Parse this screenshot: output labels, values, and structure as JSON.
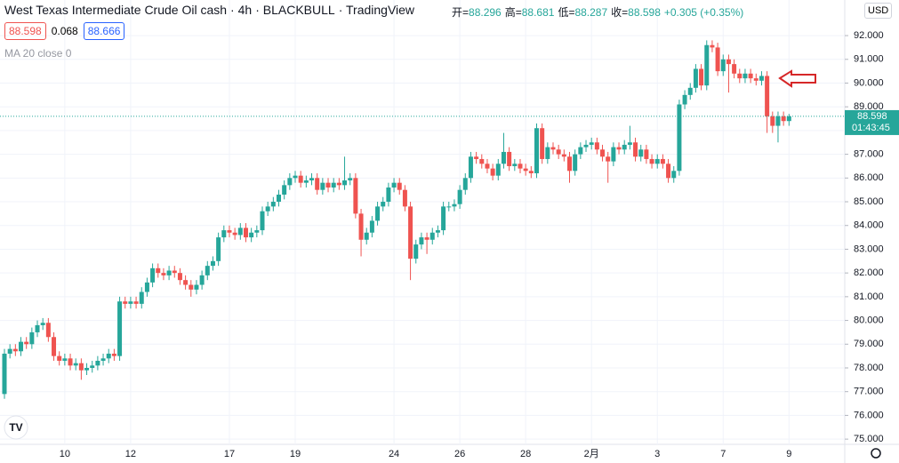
{
  "header": {
    "title": "West Texas Intermediate Crude Oil cash",
    "interval": "4h",
    "broker": "BLACKBULL",
    "source": "TradingView",
    "ohlc": [
      {
        "label": "开=",
        "value": 88.296
      },
      {
        "label": "高=",
        "value": 88.681
      },
      {
        "label": "低=",
        "value": 88.287
      },
      {
        "label": "收=",
        "value": 88.598
      }
    ],
    "change": "+0.305 (+0.35%)",
    "bid": 88.598,
    "spread": 0.068,
    "ask": 88.666,
    "indicator": "MA 20 close 0",
    "currency": "USD"
  },
  "chart_data": {
    "type": "candlestick",
    "categories": [
      null,
      null,
      null,
      null,
      null,
      null,
      null,
      null,
      null,
      null,
      null,
      "10",
      null,
      null,
      null,
      null,
      null,
      null,
      null,
      null,
      null,
      null,
      null,
      "12",
      null,
      null,
      null,
      null,
      null,
      null,
      null,
      null,
      null,
      null,
      null,
      null,
      null,
      null,
      null,
      null,
      null,
      "17",
      null,
      null,
      null,
      null,
      null,
      null,
      null,
      null,
      null,
      null,
      null,
      "19",
      null,
      null,
      null,
      null,
      null,
      null,
      null,
      null,
      null,
      null,
      null,
      null,
      null,
      null,
      null,
      null,
      null,
      "24",
      null,
      null,
      null,
      null,
      null,
      null,
      null,
      null,
      null,
      null,
      null,
      "26",
      null,
      null,
      null,
      null,
      null,
      null,
      null,
      null,
      null,
      null,
      null,
      "28",
      null,
      null,
      null,
      null,
      null,
      null,
      null,
      null,
      null,
      null,
      null,
      "2月",
      null,
      null,
      null,
      null,
      null,
      null,
      null,
      null,
      null,
      null,
      null,
      "3",
      null,
      null,
      null,
      null,
      null,
      null,
      null,
      null,
      null,
      null,
      null,
      "7",
      null,
      null,
      null,
      null,
      null,
      null,
      null,
      null,
      null,
      null,
      null,
      "9"
    ],
    "open": [
      76.9,
      78.6,
      78.8,
      78.7,
      79.1,
      79.0,
      79.5,
      79.8,
      79.9,
      79.3,
      78.5,
      78.3,
      78.4,
      78.1,
      78.2,
      77.9,
      78.0,
      78.1,
      78.3,
      78.4,
      78.6,
      78.5,
      80.8,
      80.7,
      80.8,
      80.7,
      81.2,
      81.6,
      82.2,
      82.0,
      81.9,
      82.1,
      82.0,
      81.7,
      81.5,
      81.3,
      81.5,
      81.9,
      82.3,
      82.5,
      83.5,
      83.8,
      83.7,
      83.6,
      83.9,
      83.5,
      83.7,
      83.8,
      84.6,
      84.8,
      85.0,
      85.3,
      85.7,
      86.0,
      86.1,
      85.8,
      85.9,
      86.0,
      85.5,
      85.8,
      85.6,
      85.8,
      85.7,
      85.9,
      86.0,
      84.5,
      83.4,
      83.7,
      84.2,
      84.8,
      85.0,
      85.6,
      85.8,
      85.5,
      84.8,
      82.6,
      83.2,
      83.5,
      83.4,
      83.7,
      83.8,
      84.8,
      84.8,
      84.9,
      85.5,
      86.0,
      86.9,
      86.8,
      86.6,
      86.4,
      86.1,
      86.6,
      87.1,
      86.5,
      86.6,
      86.4,
      86.3,
      86.2,
      88.1,
      86.8,
      87.3,
      87.2,
      87.0,
      86.9,
      86.3,
      87.0,
      87.3,
      87.4,
      87.5,
      87.2,
      86.9,
      86.7,
      87.3,
      87.2,
      87.4,
      87.5,
      86.9,
      87.2,
      86.8,
      86.6,
      86.8,
      86.6,
      86.0,
      86.3,
      89.1,
      89.5,
      89.8,
      90.6,
      89.9,
      91.6,
      91.5,
      90.5,
      91.0,
      90.8,
      90.4,
      90.2,
      90.4,
      90.2,
      90.1,
      90.3,
      88.6,
      88.2,
      88.6,
      88.4
    ],
    "high": [
      78.8,
      79.0,
      79.0,
      79.3,
      79.3,
      79.7,
      80.0,
      80.1,
      80.1,
      79.5,
      78.7,
      78.6,
      78.6,
      78.4,
      78.4,
      78.2,
      78.3,
      78.5,
      78.6,
      78.8,
      78.8,
      81.0,
      81.0,
      81.0,
      81.0,
      81.4,
      81.8,
      82.4,
      82.4,
      82.2,
      82.3,
      82.3,
      82.2,
      81.9,
      81.7,
      81.7,
      82.1,
      82.5,
      82.7,
      83.7,
      84.0,
      84.0,
      83.9,
      84.1,
      84.1,
      83.9,
      84.0,
      84.8,
      85.0,
      85.2,
      85.5,
      85.9,
      86.2,
      86.3,
      86.3,
      86.1,
      86.2,
      86.2,
      86.0,
      86.0,
      86.0,
      86.0,
      86.9,
      86.2,
      86.2,
      84.7,
      83.9,
      84.4,
      85.0,
      85.2,
      85.8,
      86.0,
      86.0,
      85.7,
      85.0,
      83.4,
      83.7,
      83.7,
      83.9,
      84.0,
      85.0,
      85.0,
      85.1,
      85.7,
      86.2,
      87.1,
      87.1,
      87.0,
      86.8,
      86.6,
      86.8,
      87.9,
      87.3,
      86.8,
      86.8,
      86.6,
      86.5,
      88.3,
      88.3,
      87.5,
      87.5,
      87.4,
      87.2,
      87.1,
      87.2,
      87.5,
      87.6,
      87.7,
      87.7,
      87.4,
      87.1,
      87.5,
      87.5,
      87.6,
      88.2,
      87.7,
      87.4,
      87.4,
      87.0,
      87.0,
      87.0,
      86.8,
      86.5,
      89.3,
      89.7,
      90.0,
      90.8,
      90.8,
      91.8,
      91.8,
      91.7,
      91.2,
      91.2,
      91.0,
      90.6,
      90.6,
      90.6,
      90.4,
      90.5,
      90.5,
      88.8,
      88.8,
      88.8,
      88.7
    ],
    "low": [
      76.7,
      78.4,
      78.5,
      78.5,
      78.8,
      78.8,
      79.3,
      79.6,
      79.1,
      78.3,
      78.1,
      78.1,
      77.9,
      77.9,
      77.5,
      77.7,
      77.8,
      77.9,
      78.1,
      78.2,
      78.3,
      78.3,
      80.5,
      80.5,
      80.5,
      80.5,
      81.0,
      81.4,
      81.8,
      81.7,
      81.7,
      81.8,
      81.5,
      81.3,
      81.0,
      81.1,
      81.3,
      81.7,
      82.1,
      82.3,
      83.3,
      83.5,
      83.4,
      83.4,
      83.3,
      83.3,
      83.5,
      83.6,
      84.4,
      84.6,
      84.8,
      85.1,
      85.5,
      85.8,
      85.6,
      85.6,
      85.7,
      85.3,
      85.3,
      85.4,
      85.4,
      85.5,
      85.5,
      85.7,
      84.3,
      82.7,
      83.2,
      83.5,
      84.0,
      84.6,
      84.8,
      85.4,
      85.3,
      84.6,
      81.7,
      82.4,
      83.0,
      82.8,
      83.2,
      83.5,
      83.6,
      84.6,
      84.6,
      84.7,
      85.3,
      85.8,
      86.6,
      86.4,
      86.2,
      85.9,
      85.9,
      86.4,
      86.3,
      86.3,
      86.2,
      86.1,
      86.0,
      86.0,
      86.6,
      86.6,
      87.0,
      86.8,
      86.7,
      85.8,
      86.1,
      86.8,
      87.1,
      87.2,
      87.0,
      86.7,
      85.8,
      86.5,
      87.0,
      87.0,
      87.2,
      86.7,
      86.7,
      86.6,
      86.4,
      86.4,
      86.4,
      85.8,
      85.8,
      86.1,
      88.9,
      89.3,
      89.6,
      89.7,
      89.7,
      91.3,
      90.3,
      90.3,
      89.6,
      90.2,
      90.0,
      90.0,
      90.0,
      89.9,
      89.9,
      87.9,
      87.9,
      87.5,
      88.2,
      88.2
    ],
    "close": [
      78.6,
      78.8,
      78.7,
      79.1,
      79.0,
      79.5,
      79.8,
      79.9,
      79.3,
      78.5,
      78.3,
      78.4,
      78.1,
      78.2,
      77.9,
      78.0,
      78.1,
      78.3,
      78.4,
      78.6,
      78.5,
      80.8,
      80.7,
      80.8,
      80.7,
      81.2,
      81.6,
      82.2,
      82.0,
      81.9,
      82.1,
      82.0,
      81.7,
      81.5,
      81.3,
      81.5,
      81.9,
      82.3,
      82.5,
      83.5,
      83.8,
      83.7,
      83.6,
      83.9,
      83.5,
      83.7,
      83.8,
      84.6,
      84.8,
      85.0,
      85.3,
      85.7,
      86.0,
      86.1,
      85.8,
      85.9,
      86.0,
      85.5,
      85.8,
      85.6,
      85.8,
      85.7,
      85.9,
      86.0,
      84.5,
      83.4,
      83.7,
      84.2,
      84.8,
      85.0,
      85.6,
      85.8,
      85.5,
      84.8,
      82.6,
      83.2,
      83.5,
      83.4,
      83.7,
      83.8,
      84.8,
      84.8,
      84.9,
      85.5,
      86.0,
      86.9,
      86.8,
      86.6,
      86.4,
      86.1,
      86.6,
      87.1,
      86.5,
      86.6,
      86.4,
      86.3,
      86.2,
      88.1,
      86.8,
      87.3,
      87.2,
      87.0,
      86.9,
      86.3,
      87.0,
      87.3,
      87.4,
      87.5,
      87.2,
      86.9,
      86.7,
      87.3,
      87.2,
      87.4,
      87.5,
      86.9,
      87.2,
      86.8,
      86.6,
      86.8,
      86.6,
      86.0,
      86.3,
      89.1,
      89.5,
      89.8,
      90.6,
      89.9,
      91.6,
      91.5,
      90.5,
      91.0,
      90.8,
      90.4,
      90.2,
      90.4,
      90.2,
      90.1,
      90.3,
      88.6,
      88.2,
      88.6,
      88.4,
      88.6
    ],
    "up_color": "#26a69a",
    "down_color": "#ef5350",
    "ylim": [
      74.78,
      93.5
    ],
    "yticks": [
      {
        "value": 75,
        "label": "75.000"
      },
      {
        "value": 76,
        "label": "76.000"
      },
      {
        "value": 77,
        "label": "77.000"
      },
      {
        "value": 78,
        "label": "78.000"
      },
      {
        "value": 79,
        "label": "79.000"
      },
      {
        "value": 80,
        "label": "80.000"
      },
      {
        "value": 81,
        "label": "81.000"
      },
      {
        "value": 82,
        "label": "82.000"
      },
      {
        "value": 83,
        "label": "83.000"
      },
      {
        "value": 84,
        "label": "84.000"
      },
      {
        "value": 85,
        "label": "85.000"
      },
      {
        "value": 86,
        "label": "86.000"
      },
      {
        "value": 87,
        "label": "87.000"
      },
      {
        "value": 88,
        "label": "88.000"
      },
      {
        "value": 89,
        "label": "89.000"
      },
      {
        "value": 90,
        "label": "90.000"
      },
      {
        "value": 91,
        "label": "91.000"
      },
      {
        "value": 92,
        "label": "92.000"
      }
    ],
    "last_price": 88.598,
    "countdown": "01:43:45",
    "grid": true
  }
}
